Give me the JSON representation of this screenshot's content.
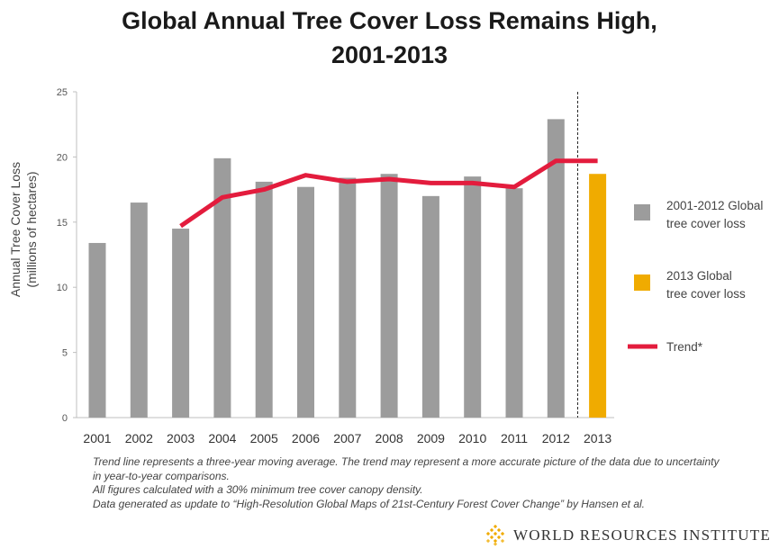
{
  "title": {
    "line1": "Global Annual Tree Cover Loss Remains High,",
    "line2": "2001-2013"
  },
  "chart_data": {
    "type": "bar",
    "title": "Global Annual Tree Cover Loss Remains High, 2001-2013",
    "ylabel_line1": "Annual Tree Cover Loss",
    "ylabel_line2": "(millions of hectares)",
    "xlabel": "",
    "ylim": [
      0,
      25
    ],
    "yticks": [
      0,
      5,
      10,
      15,
      20,
      25
    ],
    "categories": [
      "2001",
      "2002",
      "2003",
      "2004",
      "2005",
      "2006",
      "2007",
      "2008",
      "2009",
      "2010",
      "2011",
      "2012",
      "2013"
    ],
    "series": [
      {
        "name": "2001-2012 Global tree cover loss",
        "color": "#9c9c9c",
        "values": [
          13.4,
          16.5,
          14.5,
          19.9,
          18.1,
          17.7,
          18.4,
          18.7,
          17.0,
          18.5,
          17.6,
          22.9,
          null
        ]
      },
      {
        "name": "2013 Global tree cover loss",
        "color": "#f0ab00",
        "values": [
          null,
          null,
          null,
          null,
          null,
          null,
          null,
          null,
          null,
          null,
          null,
          null,
          18.7
        ]
      },
      {
        "name": "Trend*",
        "color": "#e31c3d",
        "type": "line",
        "values": [
          null,
          null,
          14.7,
          16.9,
          17.5,
          18.6,
          18.1,
          18.3,
          18.0,
          18.0,
          17.7,
          19.7,
          19.7
        ]
      }
    ],
    "divider_after": "2012",
    "legend": [
      {
        "line1": "2001-2012 Global",
        "line2": "tree cover loss",
        "color": "#9c9c9c",
        "kind": "box"
      },
      {
        "line1": "2013 Global",
        "line2": "tree cover loss",
        "color": "#f0ab00",
        "kind": "box"
      },
      {
        "line1": "Trend*",
        "line2": "",
        "color": "#e31c3d",
        "kind": "line"
      }
    ],
    "legend_position": "right"
  },
  "notes": {
    "line1": "Trend line represents a three-year moving average. The trend may represent a more accurate picture of the data due to uncertainty",
    "line2": "in year-to-year comparisons.",
    "line3": "All figures calculated with a 30% minimum tree cover canopy density.",
    "line4": "Data generated as update to “High-Resolution Global Maps of 21st-Century Forest Cover Change” by Hansen et al."
  },
  "logo": {
    "text": "WORLD RESOURCES INSTITUTE",
    "color": "#f0ab00",
    "icon": "wri-diamond-lattice-icon"
  },
  "colors": {
    "axis": "#bfbfbf",
    "tick_text": "#555555"
  }
}
